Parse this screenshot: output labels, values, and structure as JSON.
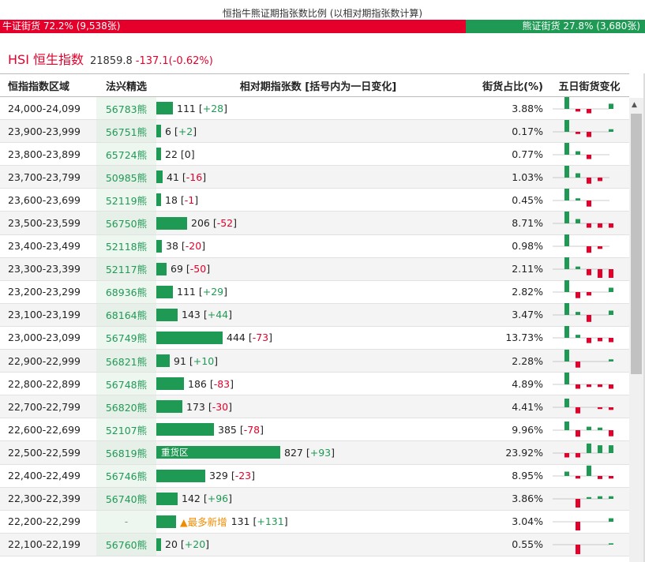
{
  "title": "恒指牛熊证期指张数比例 (以相对期指张数计算)",
  "ratio": {
    "bull_label": "牛证街货 72.2% (9,538张)",
    "bear_label": "熊证街货 27.8% (3,680张)",
    "bull_pct": 72.2,
    "bull_color": "#e4002b",
    "bear_color": "#1f9a54"
  },
  "index": {
    "name": "HSI 恒生指数",
    "price": "21859.8",
    "change": "-137.1(-0.62%)"
  },
  "headers": {
    "range": "恒指指数区域",
    "warrant": "法兴精选",
    "qty": "相对期指张数 [括号内为一日变化]",
    "pct": "街货占比(%)",
    "five": "五日街货变化"
  },
  "rows": [
    {
      "range": "24,000-24,099",
      "warrant": "56783熊",
      "qty": 111,
      "chg": "+28",
      "pct": "3.88%",
      "five": [
        3,
        -0.6,
        -1,
        0,
        1.2
      ]
    },
    {
      "range": "23,900-23,999",
      "warrant": "56751熊",
      "qty": 6,
      "chg": "+2",
      "pct": "0.17%",
      "five": [
        3,
        -0.5,
        -1.2,
        0,
        0.6
      ]
    },
    {
      "range": "23,800-23,899",
      "warrant": "65724熊",
      "qty": 22,
      "chg": "0",
      "pct": "0.77%",
      "five": [
        3,
        0.8,
        -1,
        0,
        0
      ]
    },
    {
      "range": "23,700-23,799",
      "warrant": "50985熊",
      "qty": 41,
      "chg": "-16",
      "pct": "1.03%",
      "five": [
        3,
        1,
        -1.4,
        -0.8,
        0
      ]
    },
    {
      "range": "23,600-23,699",
      "warrant": "52119熊",
      "qty": 18,
      "chg": "-1",
      "pct": "0.45%",
      "five": [
        3,
        0.5,
        -1.4,
        0,
        0
      ]
    },
    {
      "range": "23,500-23,599",
      "warrant": "56750熊",
      "qty": 206,
      "chg": "-52",
      "pct": "8.71%",
      "five": [
        3,
        1,
        -1,
        -1,
        -1
      ]
    },
    {
      "range": "23,400-23,499",
      "warrant": "52118熊",
      "qty": 38,
      "chg": "-20",
      "pct": "0.98%",
      "five": [
        3,
        0,
        -1.5,
        -0.6,
        0
      ]
    },
    {
      "range": "23,300-23,399",
      "warrant": "52117熊",
      "qty": 69,
      "chg": "-50",
      "pct": "2.11%",
      "five": [
        3,
        0.6,
        -1.4,
        -2,
        -2
      ]
    },
    {
      "range": "23,200-23,299",
      "warrant": "68936熊",
      "qty": 111,
      "chg": "+29",
      "pct": "2.82%",
      "five": [
        3,
        -1.4,
        -0.8,
        0,
        1
      ]
    },
    {
      "range": "23,100-23,199",
      "warrant": "68164熊",
      "qty": 143,
      "chg": "+44",
      "pct": "3.47%",
      "five": [
        3,
        0.7,
        -1.6,
        0,
        1
      ]
    },
    {
      "range": "23,000-23,099",
      "warrant": "56749熊",
      "qty": 444,
      "chg": "-73",
      "pct": "13.73%",
      "five": [
        3,
        0.7,
        -1.2,
        -0.8,
        -1
      ]
    },
    {
      "range": "22,900-22,999",
      "warrant": "56821熊",
      "qty": 91,
      "chg": "+10",
      "pct": "2.28%",
      "five": [
        3,
        -1.4,
        0,
        0,
        0.5
      ]
    },
    {
      "range": "22,800-22,899",
      "warrant": "56748熊",
      "qty": 186,
      "chg": "-83",
      "pct": "4.89%",
      "five": [
        3,
        -1,
        -0.6,
        -0.6,
        -1
      ]
    },
    {
      "range": "22,700-22,799",
      "warrant": "56820熊",
      "qty": 173,
      "chg": "-30",
      "pct": "4.41%",
      "five": [
        2,
        -1.4,
        0,
        -0.4,
        -0.6
      ]
    },
    {
      "range": "22,600-22,699",
      "warrant": "52107熊",
      "qty": 385,
      "chg": "-78",
      "pct": "9.96%",
      "five": [
        2,
        -1.5,
        0.8,
        0.6,
        -1.4
      ]
    },
    {
      "range": "22,500-22,599",
      "warrant": "56819熊",
      "qty": 827,
      "chg": "+93",
      "pct": "23.92%",
      "heavy": "重货区",
      "five": [
        -1,
        -1,
        2.2,
        1.8,
        1.8
      ]
    },
    {
      "range": "22,400-22,499",
      "warrant": "56746熊",
      "qty": 329,
      "chg": "-23",
      "pct": "8.95%",
      "five": [
        1,
        -0.6,
        2.4,
        -0.7,
        -0.6
      ]
    },
    {
      "range": "22,300-22,399",
      "warrant": "56740熊",
      "qty": 142,
      "chg": "+96",
      "pct": "3.86%",
      "five": [
        0,
        -2,
        0.4,
        0.6,
        0.6
      ]
    },
    {
      "range": "22,200-22,299",
      "warrant": "-",
      "qty": 131,
      "chg": "+131",
      "pct": "3.04%",
      "new": "▲最多新增",
      "five": [
        0,
        -2,
        0,
        0,
        0.8
      ]
    },
    {
      "range": "22,100-22,199",
      "warrant": "56760熊",
      "qty": 20,
      "chg": "+20",
      "pct": "0.55%",
      "five": [
        0,
        -2.2,
        0,
        0,
        0.3
      ]
    }
  ]
}
